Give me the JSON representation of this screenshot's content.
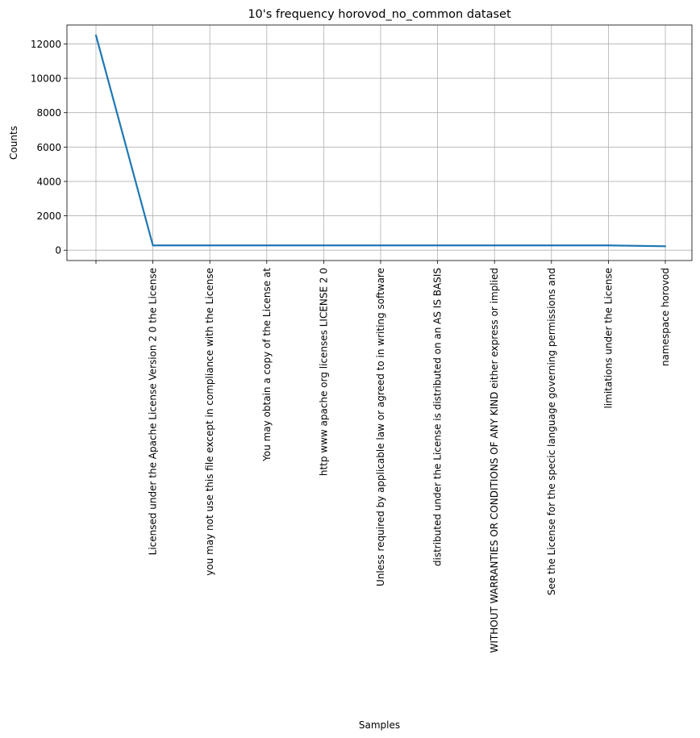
{
  "chart_data": {
    "type": "line",
    "title": "10's frequency horovod_no_common dataset",
    "xlabel": "Samples",
    "ylabel": "Counts",
    "categories": [
      "",
      "Licensed under the Apache License Version 2 0 the License",
      "you may not use this file except in compliance with the License",
      "You may obtain a copy of the License at",
      "http www apache org licenses LICENSE 2 0",
      "Unless required by applicable law or agreed to in writing software",
      "distributed under the License is distributed on an AS IS BASIS",
      "WITHOUT WARRANTIES OR CONDITIONS OF ANY KIND either express or implied",
      "See the License for the specic language governing permissions and",
      "limitations under the License",
      "namespace horovod"
    ],
    "values": [
      12500,
      280,
      280,
      280,
      280,
      280,
      280,
      280,
      280,
      280,
      230
    ],
    "ylim": [
      -600,
      13100
    ],
    "yticks": [
      0,
      2000,
      4000,
      6000,
      8000,
      10000,
      12000
    ],
    "grid": true,
    "line_color": "#1f77b4"
  }
}
